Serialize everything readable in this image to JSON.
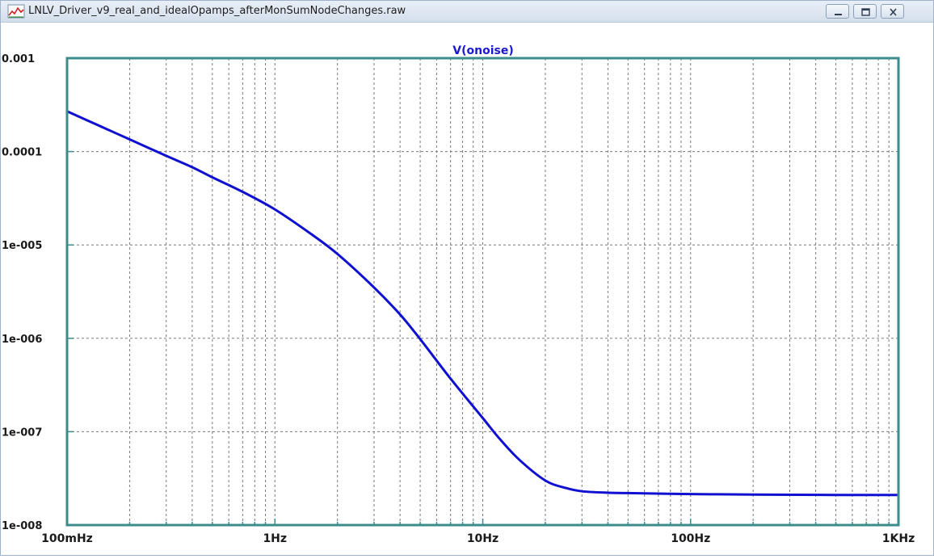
{
  "window": {
    "title": "LNLV_Driver_v9_real_and_idealOpamps_afterMonSumNodeChanges.raw",
    "icon": "waveform-icon",
    "buttons": [
      "minimize-icon",
      "restore-icon",
      "close-icon"
    ]
  },
  "colors": {
    "trace": "#1010d0",
    "axis_frame": "#3c8c8c",
    "grid": "#7a7a7a",
    "title": "#1a1acc",
    "tick_text": "#1a1a1a"
  },
  "chart_data": {
    "type": "line",
    "title": "V(onoise)",
    "xscale": "log",
    "yscale": "log",
    "xlim": [
      0.1,
      1000
    ],
    "ylim": [
      1e-08,
      0.001
    ],
    "grid": true,
    "x_tick_labels": [
      "100mHz",
      "1Hz",
      "10Hz",
      "100Hz",
      "1KHz"
    ],
    "y_tick_labels": [
      "0.001",
      "0.0001",
      "1e-005",
      "1e-006",
      "1e-007",
      "1e-008"
    ],
    "series": [
      {
        "name": "V(onoise)",
        "x": [
          0.1,
          0.15,
          0.2,
          0.3,
          0.4,
          0.5,
          0.7,
          1,
          1.5,
          2,
          3,
          4,
          5,
          7,
          10,
          12,
          15,
          20,
          25,
          30,
          40,
          50,
          100,
          200,
          500,
          1000
        ],
        "y": [
          0.00027,
          0.00018,
          0.000135,
          9e-05,
          6.8e-05,
          5.3e-05,
          3.7e-05,
          2.4e-05,
          1.3e-05,
          8e-06,
          3.5e-06,
          1.8e-06,
          9.8e-07,
          3.7e-07,
          1.4e-07,
          8.5e-08,
          5e-08,
          3e-08,
          2.5e-08,
          2.3e-08,
          2.22e-08,
          2.2e-08,
          2.15e-08,
          2.12e-08,
          2.1e-08,
          2.1e-08
        ]
      }
    ]
  }
}
